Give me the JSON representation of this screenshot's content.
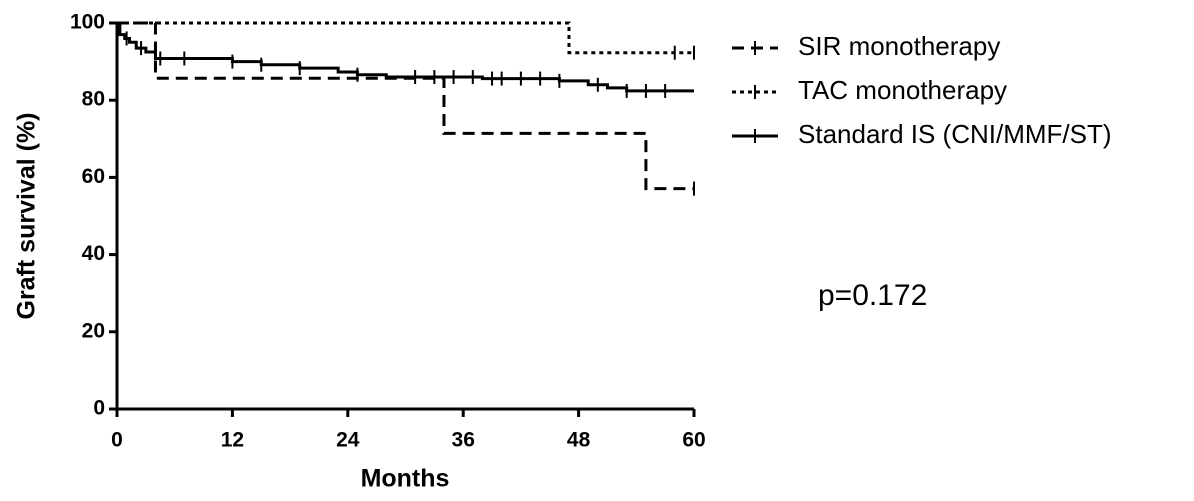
{
  "chart_data": {
    "type": "step",
    "xlabel": "Months",
    "ylabel": "Graft survival (%)",
    "xlim": [
      0,
      60
    ],
    "xticks": [
      0,
      12,
      24,
      36,
      48,
      60
    ],
    "ylim": [
      0,
      100
    ],
    "yticks": [
      0,
      20,
      40,
      60,
      80,
      100
    ],
    "annotation": "p=0.172",
    "series": [
      {
        "name": "SIR monotherapy",
        "color": "#000000",
        "style": "dashed",
        "x": [
          0,
          4,
          34,
          55,
          60
        ],
        "values": [
          100,
          85.7,
          71.4,
          57.1,
          57.1
        ],
        "censor_x": [
          60
        ]
      },
      {
        "name": "TAC monotherapy",
        "color": "#000000",
        "style": "dotted",
        "x": [
          0,
          47,
          60
        ],
        "values": [
          100,
          92.3,
          92.3
        ],
        "censor_x": [
          58,
          60
        ]
      },
      {
        "name": "Standard IS (CNI/MMF/ST)",
        "color": "#000000",
        "style": "solid",
        "x": [
          0,
          0.3,
          0.8,
          1.3,
          2,
          3,
          4,
          12,
          15,
          19,
          23,
          25,
          28,
          38,
          46,
          49,
          51,
          53,
          60
        ],
        "values": [
          100,
          97,
          96,
          95,
          93.5,
          92.5,
          90.8,
          90,
          89.2,
          88.3,
          87.3,
          86.6,
          86,
          85.6,
          85,
          84,
          83.2,
          82.4,
          82.4
        ],
        "censor_x": [
          1,
          2.5,
          4.5,
          7,
          12,
          15,
          19,
          25,
          31,
          33,
          35,
          37,
          39,
          40,
          42,
          44,
          46,
          50,
          53,
          55,
          57
        ]
      }
    ]
  }
}
